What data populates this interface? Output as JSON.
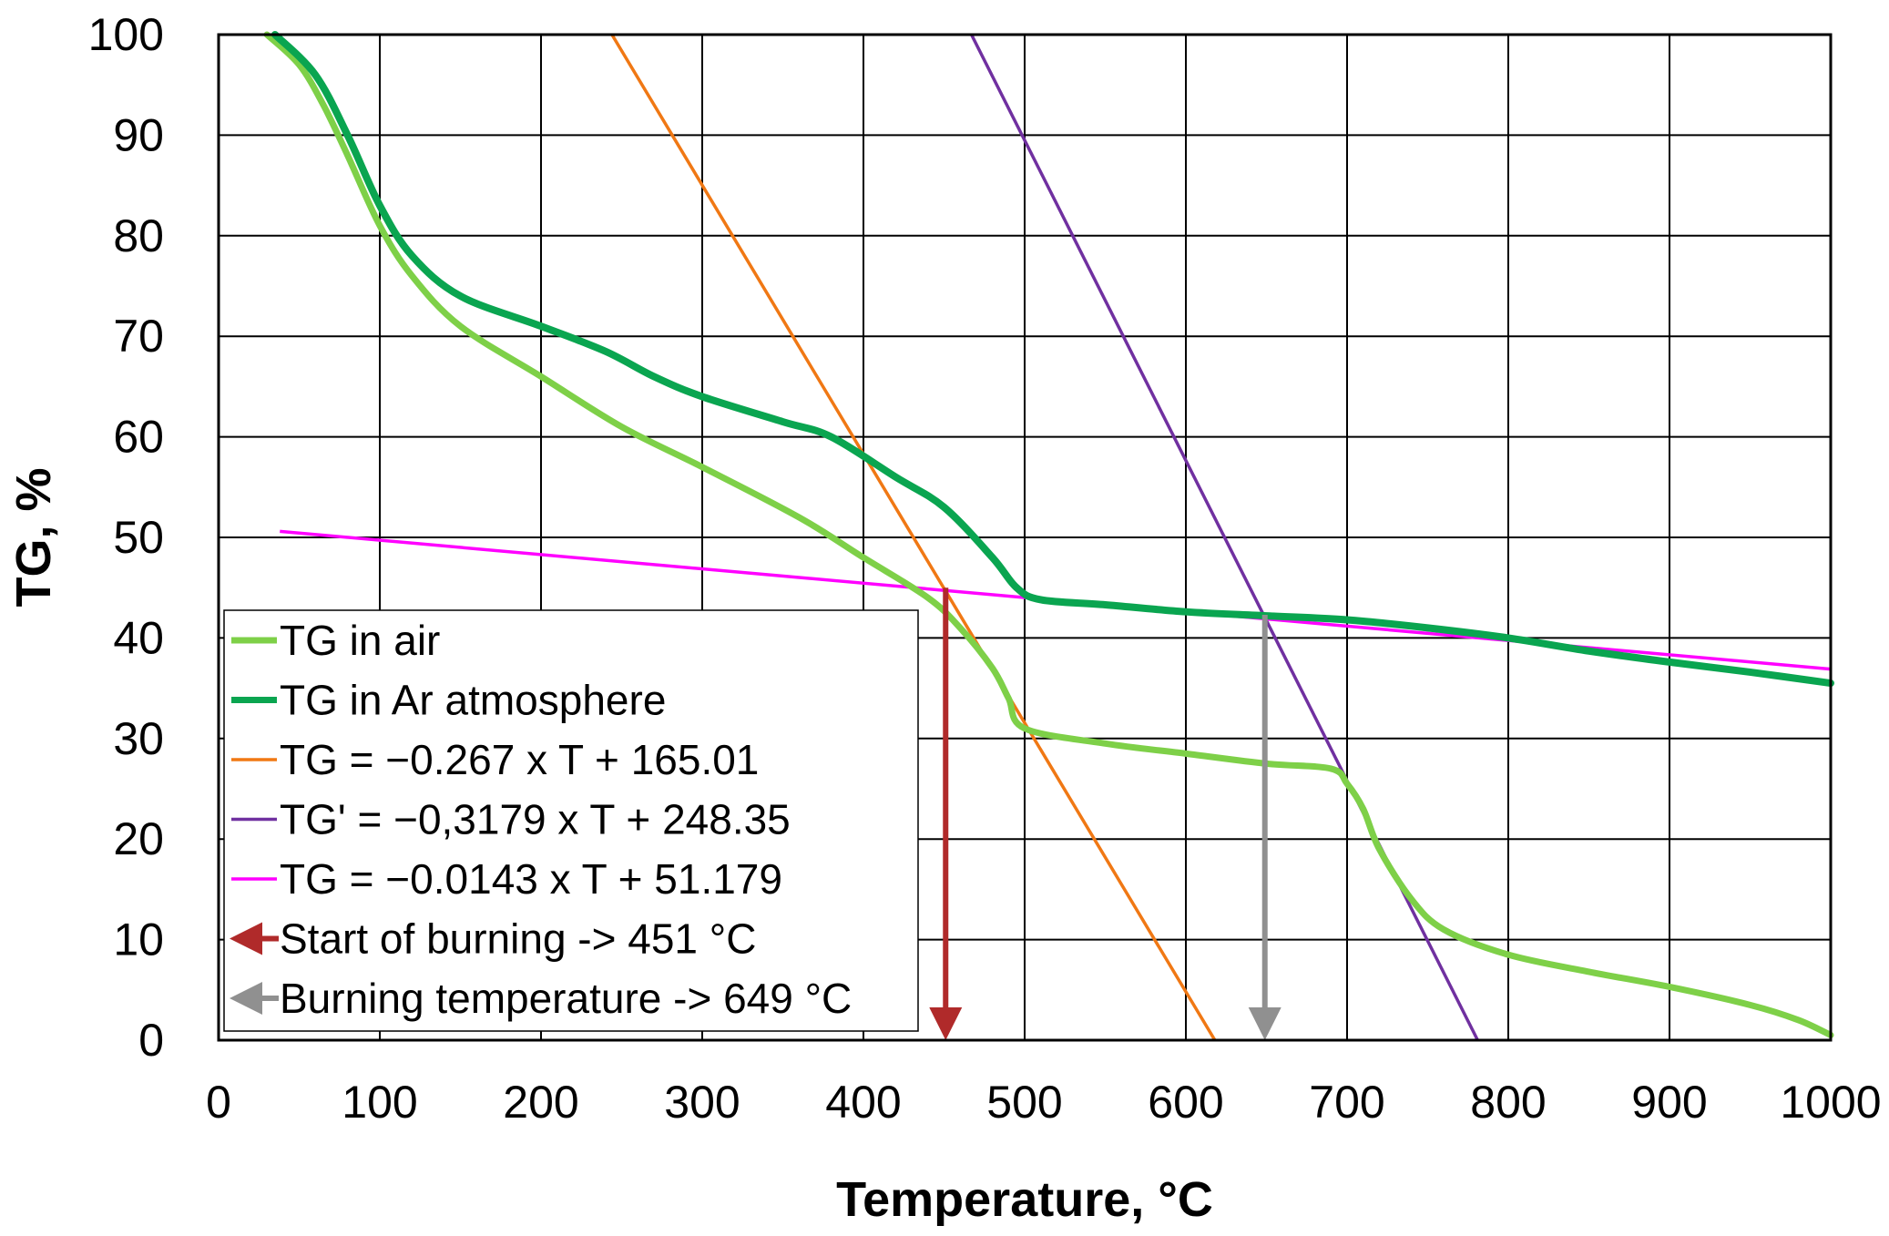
{
  "chart_data": {
    "type": "line",
    "title": "",
    "xlabel": "Temperature, °C",
    "ylabel": "TG, %",
    "xlim": [
      0,
      1000
    ],
    "ylim": [
      0,
      100
    ],
    "x_ticks": [
      "0",
      "100",
      "200",
      "300",
      "400",
      "500",
      "600",
      "700",
      "800",
      "900",
      "1000"
    ],
    "y_ticks": [
      "0",
      "10",
      "20",
      "30",
      "40",
      "50",
      "60",
      "70",
      "80",
      "90",
      "100"
    ],
    "grid": true,
    "legend_position": "bottom-left",
    "series": [
      {
        "name": "TG in air",
        "kind": "curve",
        "color": "#7ed048",
        "x": [
          30,
          50,
          65,
          80,
          100,
          120,
          150,
          200,
          250,
          300,
          360,
          400,
          440,
          460,
          480,
          490,
          500,
          550,
          600,
          650,
          690,
          700,
          710,
          720,
          740,
          760,
          800,
          850,
          900,
          950,
          980,
          1000
        ],
        "y": [
          100,
          97,
          93,
          88,
          81,
          76,
          71,
          66,
          61,
          57,
          52,
          48,
          44,
          41,
          37,
          34,
          31,
          29.5,
          28.5,
          27.5,
          27,
          25.5,
          23,
          19,
          14,
          11,
          8.5,
          6.8,
          5.3,
          3.5,
          2,
          0.5
        ]
      },
      {
        "name": "TG in Ar atmosphere",
        "kind": "curve",
        "color": "#0aa550",
        "x": [
          35,
          60,
          80,
          100,
          120,
          150,
          200,
          240,
          270,
          300,
          350,
          380,
          420,
          450,
          480,
          495,
          510,
          550,
          600,
          650,
          700,
          750,
          800,
          850,
          900,
          950,
          1000
        ],
        "y": [
          100,
          96,
          90,
          83,
          78,
          74,
          71,
          68.5,
          66,
          64,
          61.5,
          60,
          56,
          53,
          48,
          45,
          43.8,
          43.3,
          42.6,
          42.2,
          41.8,
          41,
          40,
          38.7,
          37.6,
          36.6,
          35.5
        ]
      },
      {
        "name": "TG = −0.267 x T + 165.01",
        "kind": "line",
        "color": "#f07814",
        "x": [
          244,
          618
        ],
        "y": [
          100,
          0
        ]
      },
      {
        "name": "TG' = −0,3179 x T + 248.35",
        "kind": "line",
        "color": "#7030a0",
        "x": [
          467,
          781
        ],
        "y": [
          100,
          0
        ]
      },
      {
        "name": "TG = −0.0143 x T + 51.179",
        "kind": "line",
        "color": "#ff00ff",
        "x": [
          38,
          1000
        ],
        "y": [
          50.6,
          36.9
        ]
      },
      {
        "name": "Start of burning -> 451 °C",
        "kind": "arrow",
        "color": "#b02a2a",
        "x": [
          451,
          451
        ],
        "y": [
          45,
          0
        ]
      },
      {
        "name": "Burning temperature -> 649 °C",
        "kind": "arrow",
        "color": "#909090",
        "x": [
          649,
          649
        ],
        "y": [
          42.3,
          0
        ]
      }
    ]
  }
}
